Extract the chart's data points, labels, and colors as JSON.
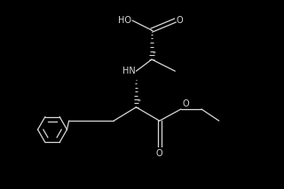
{
  "bg_color": "#000000",
  "line_color": "#d8d8d8",
  "text_color": "#d8d8d8",
  "figsize": [
    3.2,
    2.13
  ],
  "dpi": 100,
  "xlim": [
    -0.12,
    1.05
  ],
  "ylim": [
    0.05,
    1.02
  ]
}
